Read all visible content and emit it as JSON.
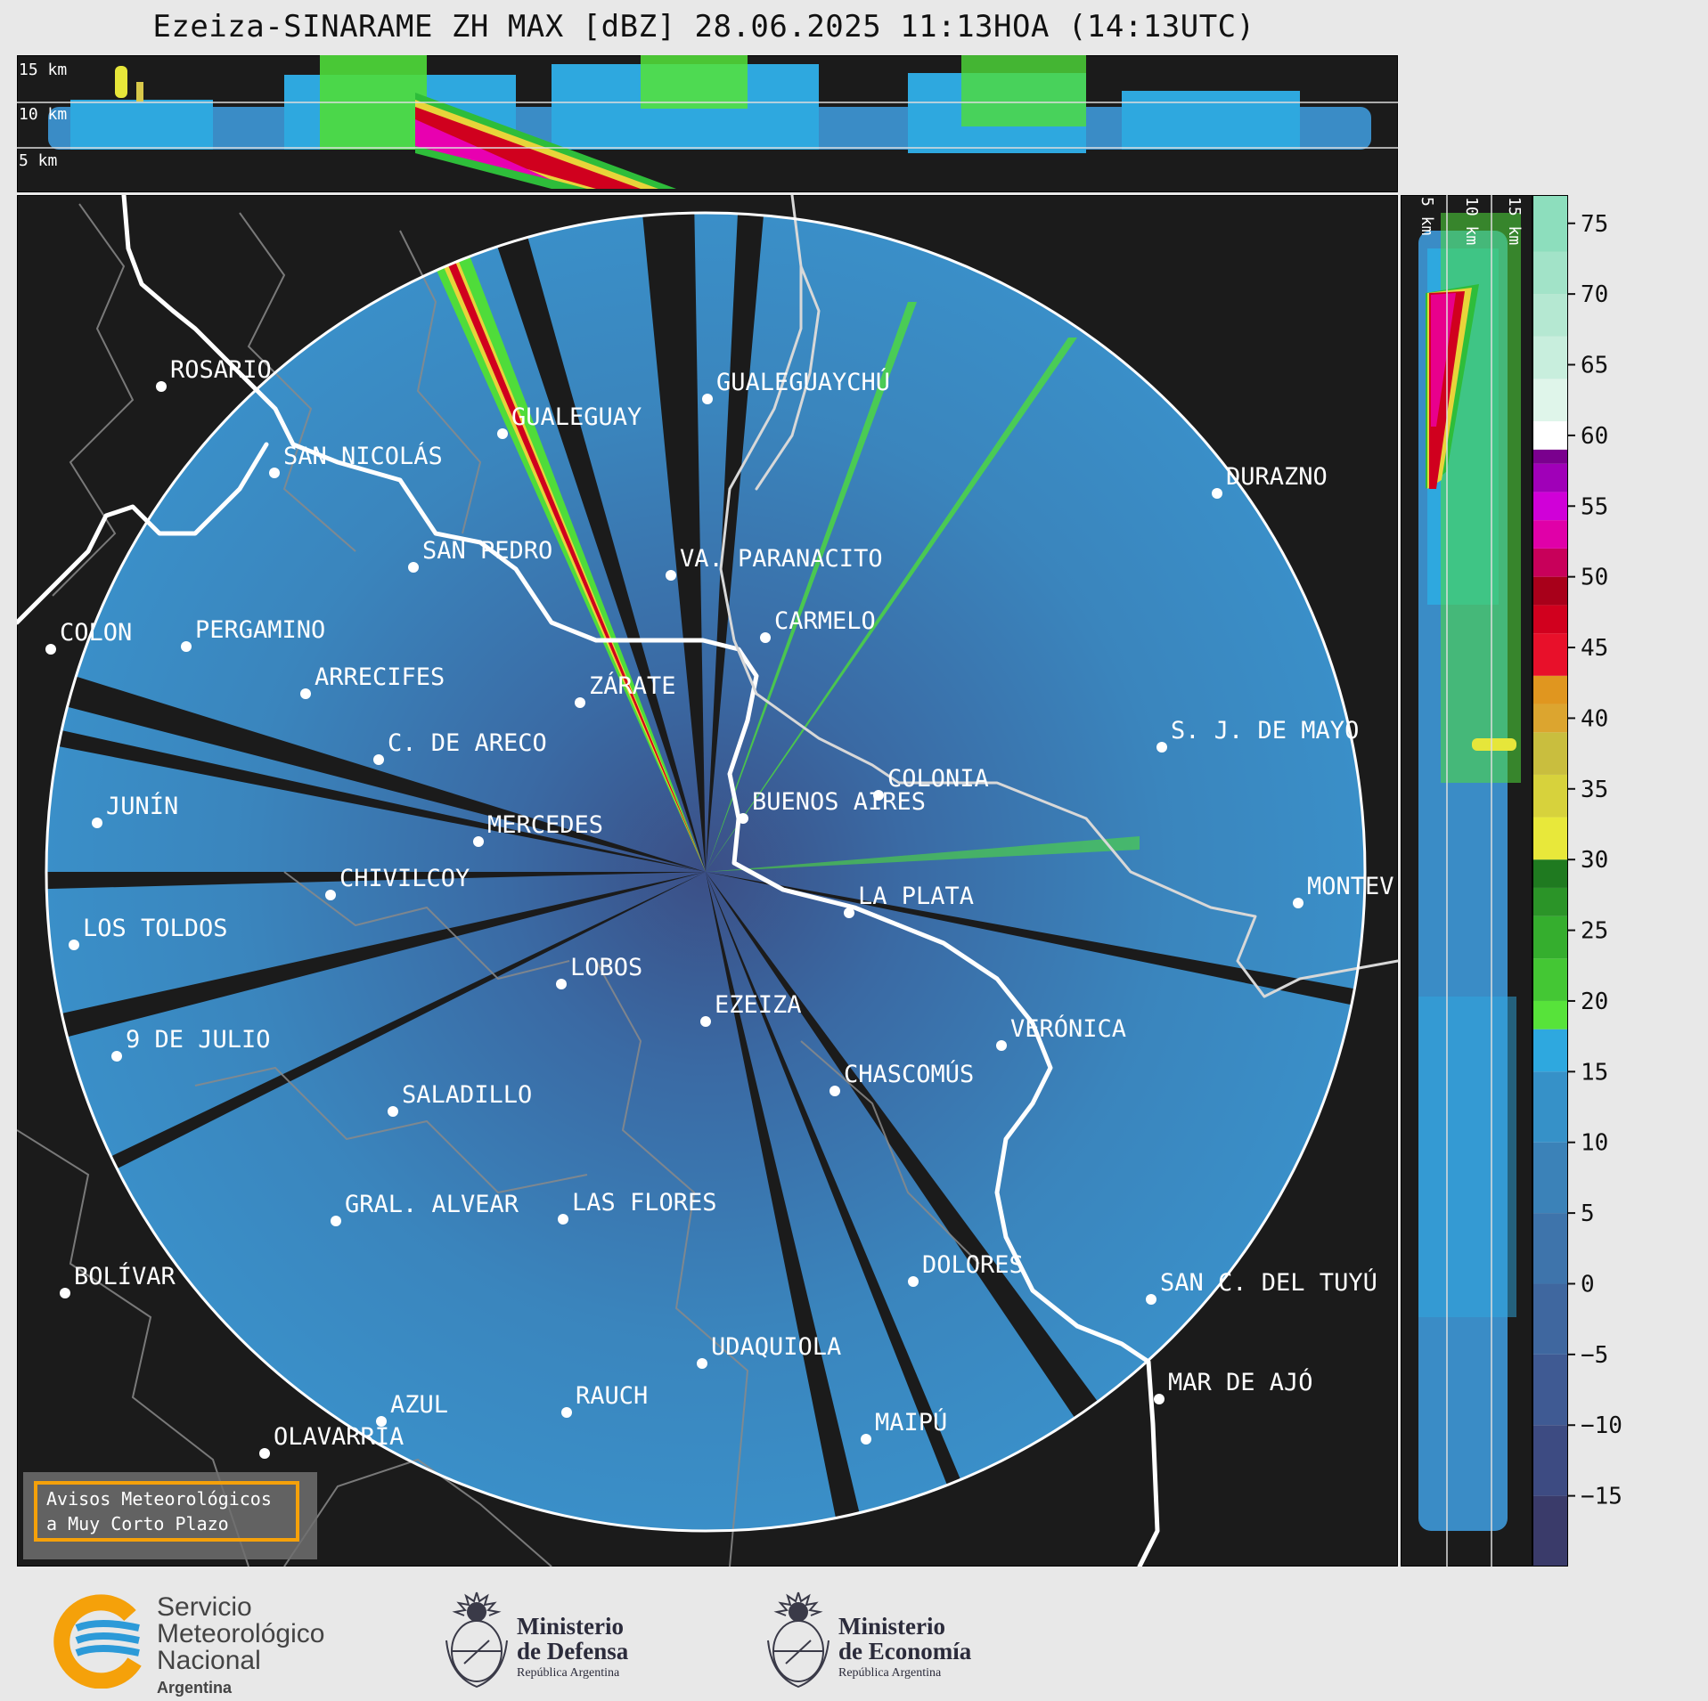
{
  "title": "Ezeiza-SINARAME ZH MAX [dBZ] 28.06.2025 11:13HOA (14:13UTC)",
  "height_labels_top": [
    "15 km",
    "10 km",
    "5 km"
  ],
  "height_labels_side": [
    "5 km",
    "10 km",
    "15 km"
  ],
  "colorbar": {
    "ticks": [
      "75",
      "70",
      "65",
      "60",
      "55",
      "50",
      "45",
      "40",
      "35",
      "30",
      "25",
      "20",
      "15",
      "10",
      "5",
      "0",
      "−5",
      "−10",
      "−15"
    ],
    "range": [
      -20,
      77
    ]
  },
  "cities": [
    {
      "name": "ROSARIO",
      "label": "ROSARIO"
    },
    {
      "name": "GUALEGUAYCHU",
      "label": "GUALEGUAYCHÚ"
    },
    {
      "name": "GUALEGUAY",
      "label": "GUALEGUAY"
    },
    {
      "name": "SAN NICOLAS",
      "label": "SAN NICOLÁS"
    },
    {
      "name": "DURAZNO",
      "label": "DURAZNO"
    },
    {
      "name": "SAN PEDRO",
      "label": "SAN PEDRO"
    },
    {
      "name": "VA PARANACITO",
      "label": "VA. PARANACITO"
    },
    {
      "name": "COLON",
      "label": "COLON"
    },
    {
      "name": "PERGAMINO",
      "label": "PERGAMINO"
    },
    {
      "name": "CARMELO",
      "label": "CARMELO"
    },
    {
      "name": "ARRECIFES",
      "label": "ARRECIFES"
    },
    {
      "name": "ZARATE",
      "label": "ZÁRATE"
    },
    {
      "name": "SJ DE MAYO",
      "label": "S. J. DE MAYO"
    },
    {
      "name": "C DE ARECO",
      "label": "C. DE ARECO"
    },
    {
      "name": "COLONIA",
      "label": "COLONIA"
    },
    {
      "name": "JUNIN",
      "label": "JUNÍN"
    },
    {
      "name": "BUENOS AIRES",
      "label": "BUENOS AIRES"
    },
    {
      "name": "MERCEDES",
      "label": "MERCEDES"
    },
    {
      "name": "EZEIZA",
      "label": "EZEIZA"
    },
    {
      "name": "MONTEVIDEO",
      "label": "MONTEV"
    },
    {
      "name": "CHIVILCOY",
      "label": "CHIVILCOY"
    },
    {
      "name": "LA PLATA",
      "label": "LA PLATA"
    },
    {
      "name": "LOS TOLDOS",
      "label": "LOS TOLDOS"
    },
    {
      "name": "LOBOS",
      "label": "LOBOS"
    },
    {
      "name": "VERONICA",
      "label": "VERÓNICA"
    },
    {
      "name": "9 DE JULIO",
      "label": "9 DE JULIO"
    },
    {
      "name": "CHASCOMUS",
      "label": "CHASCOMÚS"
    },
    {
      "name": "SALADILLO",
      "label": "SALADILLO"
    },
    {
      "name": "GRAL ALVEAR",
      "label": "GRAL. ALVEAR"
    },
    {
      "name": "LAS FLORES",
      "label": "LAS FLORES"
    },
    {
      "name": "BOLIVAR",
      "label": "BOLÍVAR"
    },
    {
      "name": "DOLORES",
      "label": "DOLORES"
    },
    {
      "name": "SAN C DEL TUYU",
      "label": "SAN C. DEL TUYÚ"
    },
    {
      "name": "UDAQUIOLA",
      "label": "UDAQUIOLA"
    },
    {
      "name": "AZUL",
      "label": "AZUL"
    },
    {
      "name": "RAUCH",
      "label": "RAUCH"
    },
    {
      "name": "MAR DE AJO",
      "label": "MAR DE AJÓ"
    },
    {
      "name": "OLAVARRIA",
      "label": "OLAVARRÍA"
    },
    {
      "name": "MAIPU",
      "label": "MAIPÚ"
    }
  ],
  "warning_box": {
    "line1": "Avisos Meteorológicos",
    "line2": "a Muy Corto Plazo"
  },
  "logos": {
    "smn": {
      "line1": "Servicio",
      "line2": "Meteorológico",
      "line3": "Nacional",
      "line4": "Argentina"
    },
    "defensa": {
      "line1": "Ministerio",
      "line2": "de Defensa",
      "line3": "República Argentina"
    },
    "economia": {
      "line1": "Ministerio",
      "line2": "de Economía",
      "line3": "República Argentina"
    }
  },
  "colors": {
    "panel_bg": "#1b1b1b",
    "echo_base": "#3a85bd",
    "ring": "#ffffff",
    "accent": "#f5a10a"
  }
}
